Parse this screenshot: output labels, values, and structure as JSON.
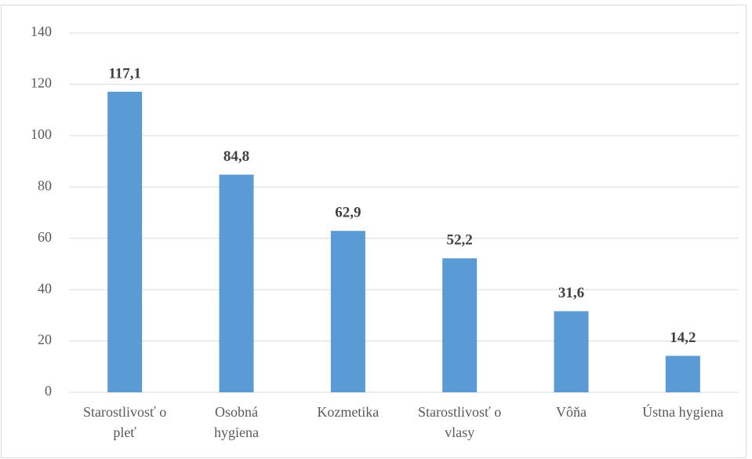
{
  "chart_data": {
    "type": "bar",
    "categories": [
      "Starostlivosť o pleť",
      "Osobná hygiena",
      "Kozmetika",
      "Starostlivosť o vlasy",
      "Vôňa",
      "Ústna hygiena"
    ],
    "values": [
      117.1,
      84.8,
      62.9,
      52.2,
      31.6,
      14.2
    ],
    "value_labels": [
      "117,1",
      "84,8",
      "62,9",
      "52,2",
      "31,6",
      "14,2"
    ],
    "color": "#5b9bd5",
    "ylim": [
      0,
      140
    ],
    "yticks": [
      0,
      20,
      40,
      60,
      80,
      100,
      120,
      140
    ],
    "grid": true
  }
}
